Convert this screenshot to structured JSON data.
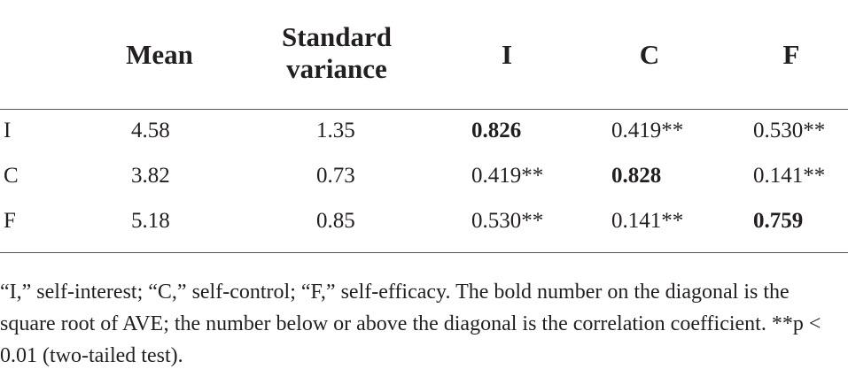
{
  "table": {
    "header": [
      "",
      "Mean",
      "Standard variance",
      "I",
      "C",
      "F"
    ],
    "rows": [
      [
        "I",
        "4.58",
        "1.35",
        "0.826",
        "0.419**",
        "0.530**"
      ],
      [
        "C",
        "3.82",
        "0.73",
        "0.419**",
        "0.828",
        "0.141**"
      ],
      [
        "F",
        "5.18",
        "0.85",
        "0.530**",
        "0.141**",
        "0.759"
      ]
    ]
  },
  "footnote": "“I,” self-interest; “C,” self-control; “F,” self-efficacy. The bold number on the diagonal is the square root of AVE; the number below or above the diagonal is the correlation coefficient. **p < 0.01 (two-tailed test)."
}
